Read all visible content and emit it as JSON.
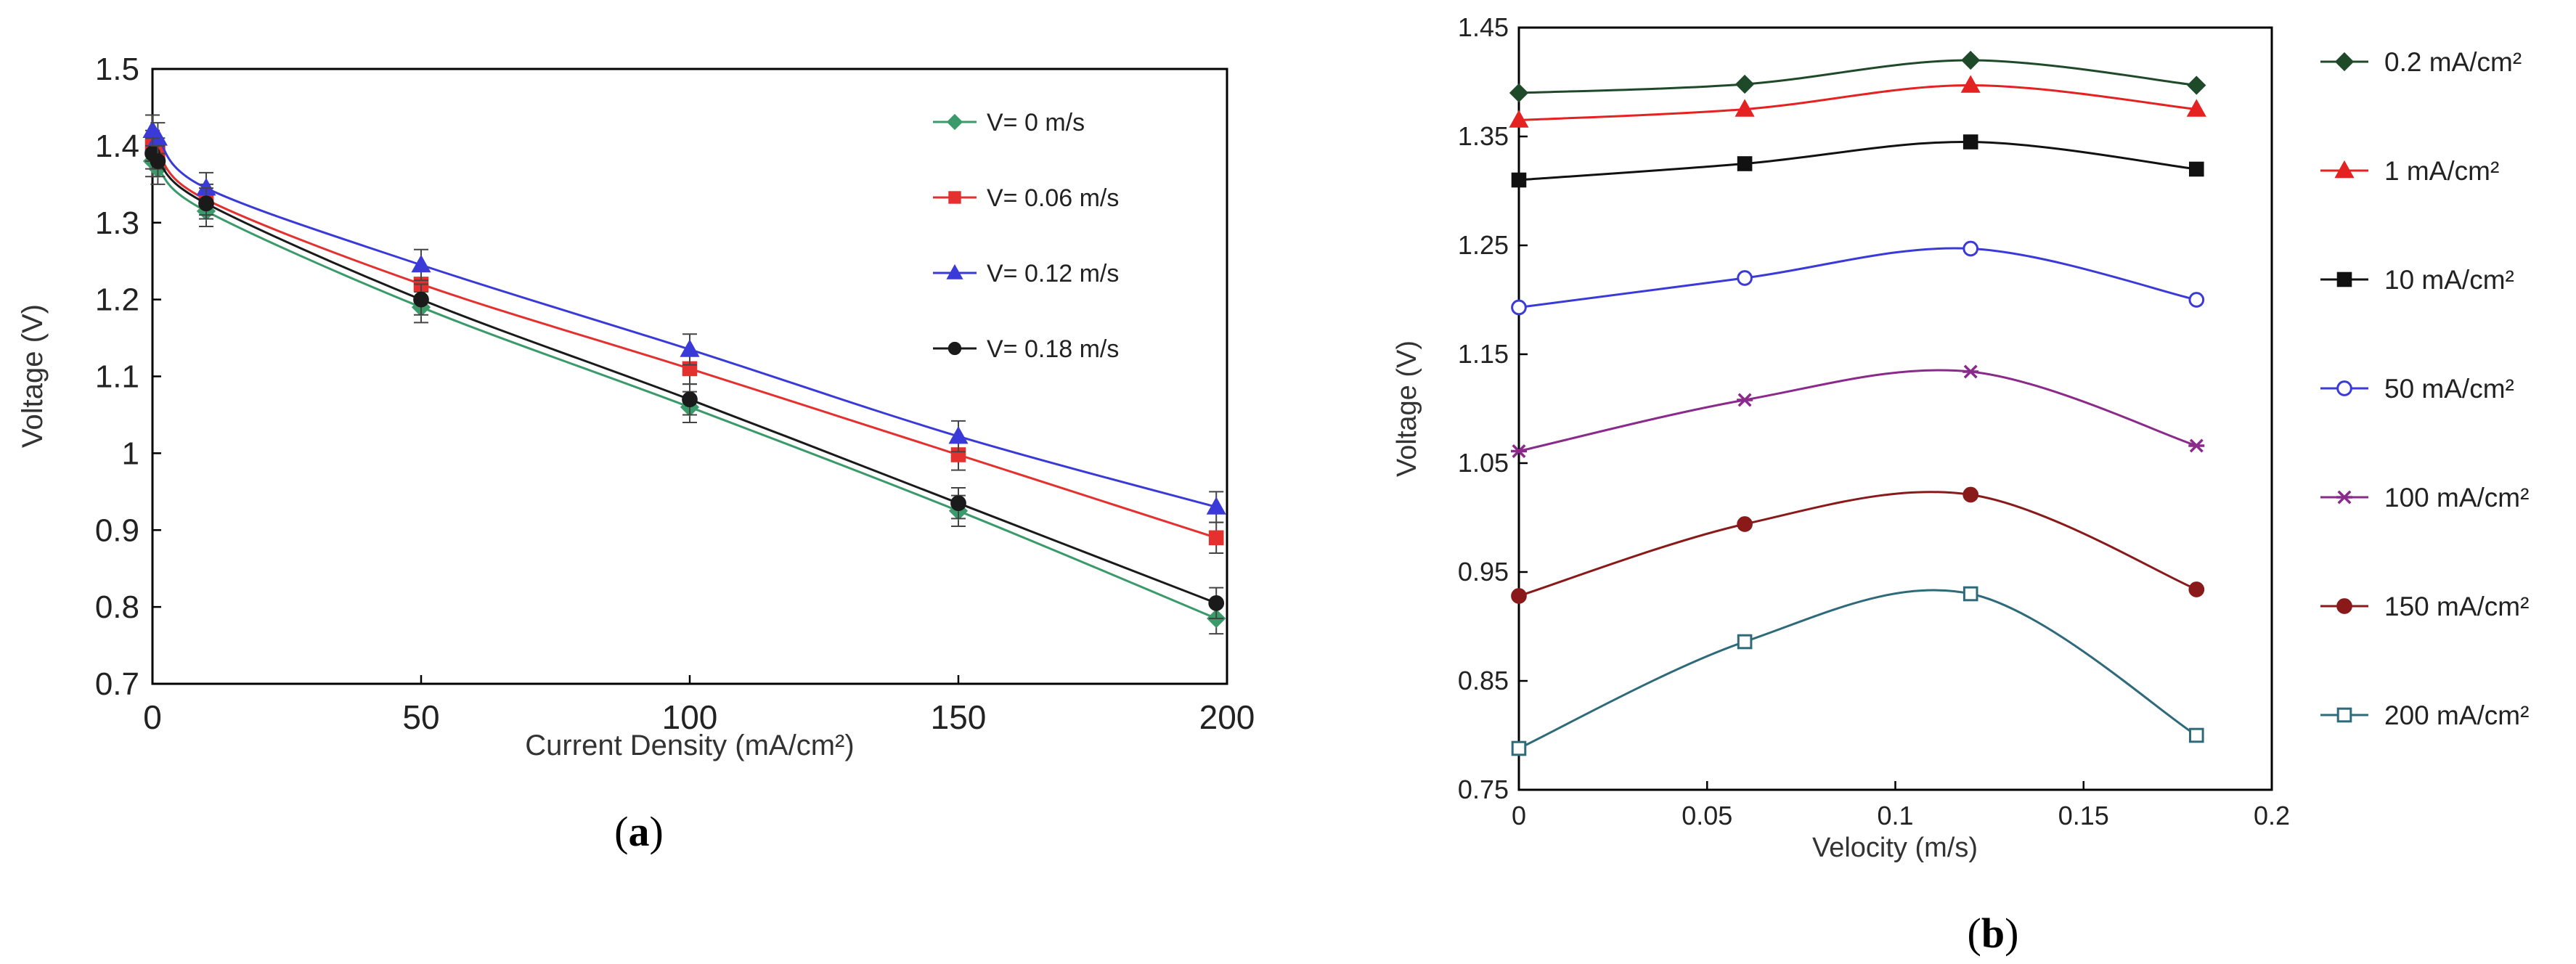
{
  "chart_data": [
    {
      "id": "a",
      "type": "line",
      "caption": {
        "prefix": "(",
        "letter": "a",
        "suffix": ")"
      },
      "title": "",
      "xlabel": "Current Density (mA/cm²)",
      "ylabel": "Voltage (V)",
      "xlim": [
        0,
        200
      ],
      "ylim": [
        0.7,
        1.5
      ],
      "xticks": [
        0,
        50,
        100,
        150,
        200
      ],
      "yticks": [
        0.7,
        0.8,
        0.9,
        1,
        1.1,
        1.2,
        1.3,
        1.4,
        1.5
      ],
      "ytick_labels": [
        "0.7",
        "0.8",
        "0.9",
        "1",
        "1.1",
        "1.2",
        "1.3",
        "1.4",
        "1.5"
      ],
      "grid": false,
      "legend_position": "top-right",
      "error_bar": 0.02,
      "series": [
        {
          "name": "V= 0 m/s",
          "color": "#3a9a6a",
          "marker": "diamond",
          "x": [
            0,
            1,
            10,
            50,
            100,
            150,
            198
          ],
          "y": [
            1.38,
            1.37,
            1.315,
            1.19,
            1.06,
            0.925,
            0.785
          ]
        },
        {
          "name": "V= 0.06 m/s",
          "color": "#e53030",
          "marker": "square",
          "x": [
            0,
            1,
            10,
            50,
            100,
            150,
            198
          ],
          "y": [
            1.4,
            1.39,
            1.33,
            1.22,
            1.11,
            0.998,
            0.89
          ]
        },
        {
          "name": "V= 0.12 m/s",
          "color": "#3a3ad8",
          "marker": "triangle",
          "x": [
            0,
            1,
            10,
            50,
            100,
            150,
            198
          ],
          "y": [
            1.42,
            1.41,
            1.345,
            1.245,
            1.135,
            1.022,
            0.93
          ]
        },
        {
          "name": "V= 0.18 m/s",
          "color": "#1a1a1a",
          "marker": "circle",
          "x": [
            0,
            1,
            10,
            50,
            100,
            150,
            198
          ],
          "y": [
            1.39,
            1.38,
            1.325,
            1.2,
            1.07,
            0.935,
            0.805
          ]
        }
      ]
    },
    {
      "id": "b",
      "type": "line",
      "caption": {
        "prefix": "(",
        "letter": "b",
        "suffix": ")"
      },
      "title": "",
      "xlabel": "Velocity (m/s)",
      "ylabel": "Voltage (V)",
      "xlim": [
        0,
        0.2
      ],
      "ylim": [
        0.75,
        1.45
      ],
      "xticks": [
        0,
        0.05,
        0.1,
        0.15,
        0.2
      ],
      "xtick_labels": [
        "0",
        "0.05",
        "0.1",
        "0.15",
        "0.2"
      ],
      "yticks": [
        0.75,
        0.85,
        0.95,
        1.05,
        1.15,
        1.25,
        1.35,
        1.45
      ],
      "ytick_labels": [
        "0.75",
        "0.85",
        "0.95",
        "1.05",
        "1.15",
        "1.25",
        "1.35",
        "1.45"
      ],
      "grid": false,
      "legend_position": "right",
      "x": [
        0,
        0.06,
        0.12,
        0.18
      ],
      "series": [
        {
          "name": "0.2 mA/cm²",
          "color": "#1f4a2a",
          "marker": "diamond",
          "filled": true,
          "values": [
            1.39,
            1.398,
            1.42,
            1.397
          ]
        },
        {
          "name": "1 mA/cm²",
          "color": "#e52222",
          "marker": "triangle",
          "filled": true,
          "values": [
            1.365,
            1.375,
            1.397,
            1.375
          ]
        },
        {
          "name": "10 mA/cm²",
          "color": "#111111",
          "marker": "square",
          "filled": true,
          "values": [
            1.31,
            1.325,
            1.345,
            1.32
          ]
        },
        {
          "name": "50 mA/cm²",
          "color": "#3a3ad8",
          "marker": "circle",
          "filled": false,
          "values": [
            1.193,
            1.22,
            1.247,
            1.2
          ]
        },
        {
          "name": "100 mA/cm²",
          "color": "#8a2a8a",
          "marker": "star",
          "filled": false,
          "values": [
            1.061,
            1.108,
            1.134,
            1.066
          ]
        },
        {
          "name": "150 mA/cm²",
          "color": "#8a1a1a",
          "marker": "circle",
          "filled": true,
          "values": [
            0.928,
            0.994,
            1.021,
            0.934
          ]
        },
        {
          "name": "200 mA/cm²",
          "color": "#2e6a7a",
          "marker": "square",
          "filled": false,
          "values": [
            0.788,
            0.886,
            0.93,
            0.8
          ]
        }
      ]
    }
  ]
}
